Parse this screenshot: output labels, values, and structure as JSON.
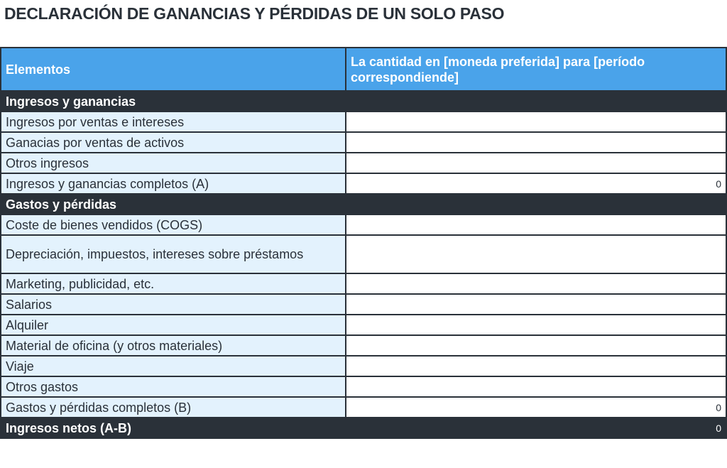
{
  "title": "DECLARACIÓN DE GANANCIAS Y PÉRDIDAS DE UN SOLO PASO",
  "colors": {
    "header": "#4aa3ea",
    "dark": "#2a3139",
    "label_bg": "#e3f2fd"
  },
  "header": {
    "col1": "Elementos",
    "col2": "La cantidad en [moneda preferida] para [período correspondiende]"
  },
  "sections": [
    {
      "title": "Ingresos y ganancias",
      "rows": [
        {
          "label": "Ingresos por ventas e intereses",
          "value": ""
        },
        {
          "label": "Ganacias por ventas de activos",
          "value": ""
        },
        {
          "label": "Otros ingresos",
          "value": ""
        },
        {
          "label": "Ingresos y ganancias completos (A)",
          "value": "0"
        }
      ]
    },
    {
      "title": "Gastos y pérdidas",
      "rows": [
        {
          "label": "Coste de bienes vendidos (COGS)",
          "value": ""
        },
        {
          "label": "Depreciación, impuestos, intereses sobre préstamos",
          "value": ""
        },
        {
          "label": "Marketing, publicidad, etc.",
          "value": ""
        },
        {
          "label": "Salarios",
          "value": ""
        },
        {
          "label": "Alquiler",
          "value": ""
        },
        {
          "label": "Material de oficina (y otros materiales)",
          "value": ""
        },
        {
          "label": "Viaje",
          "value": ""
        },
        {
          "label": "Otros gastos",
          "value": ""
        },
        {
          "label": "Gastos y pérdidas completos (B)",
          "value": "0"
        }
      ]
    }
  ],
  "net": {
    "label": "Ingresos netos (A-B)",
    "value": "0"
  }
}
